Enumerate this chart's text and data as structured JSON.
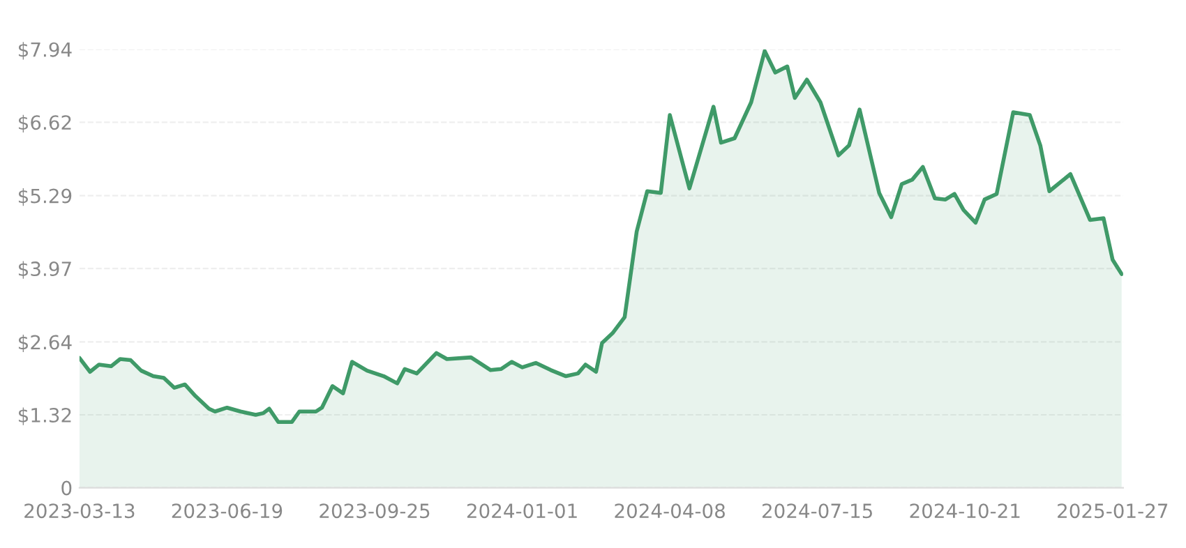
{
  "chart_data": {
    "type": "area",
    "x": [
      "2023-03-13",
      "2023-03-20",
      "2023-03-26",
      "2023-04-03",
      "2023-04-09",
      "2023-04-16",
      "2023-04-23",
      "2023-05-01",
      "2023-05-08",
      "2023-05-15",
      "2023-05-22",
      "2023-05-29",
      "2023-06-07",
      "2023-06-11",
      "2023-06-19",
      "2023-06-28",
      "2023-07-08",
      "2023-07-13",
      "2023-07-17",
      "2023-07-23",
      "2023-08-01",
      "2023-08-06",
      "2023-08-17",
      "2023-08-21",
      "2023-08-28",
      "2023-09-04",
      "2023-09-10",
      "2023-09-20",
      "2023-10-01",
      "2023-10-10",
      "2023-10-15",
      "2023-10-23",
      "2023-11-05",
      "2023-11-12",
      "2023-11-28",
      "2023-12-11",
      "2023-12-18",
      "2023-12-25",
      "2024-01-01",
      "2024-01-10",
      "2024-01-20",
      "2024-01-30",
      "2024-02-07",
      "2024-02-12",
      "2024-02-19",
      "2024-02-23",
      "2024-03-01",
      "2024-03-09",
      "2024-03-17",
      "2024-03-24",
      "2024-04-02",
      "2024-04-08",
      "2024-04-21",
      "2024-05-07",
      "2024-05-12",
      "2024-05-21",
      "2024-06-01",
      "2024-06-10",
      "2024-06-17",
      "2024-06-25",
      "2024-06-30",
      "2024-07-08",
      "2024-07-17",
      "2024-07-29",
      "2024-08-05",
      "2024-08-12",
      "2024-08-25",
      "2024-09-02",
      "2024-09-09",
      "2024-09-16",
      "2024-09-23",
      "2024-10-01",
      "2024-10-08",
      "2024-10-14",
      "2024-10-20",
      "2024-10-28",
      "2024-11-03",
      "2024-11-11",
      "2024-11-22",
      "2024-12-03",
      "2024-12-10",
      "2024-12-16",
      "2024-12-30",
      "2025-01-12",
      "2025-01-21",
      "2025-01-27",
      "2025-02-02"
    ],
    "series": [
      {
        "color": "#3f9a68",
        "values": [
          2.35,
          2.1,
          2.23,
          2.2,
          2.33,
          2.31,
          2.12,
          2.02,
          1.99,
          1.81,
          1.87,
          1.66,
          1.43,
          1.38,
          1.45,
          1.38,
          1.32,
          1.35,
          1.43,
          1.19,
          1.19,
          1.38,
          1.38,
          1.45,
          1.84,
          1.71,
          2.28,
          2.12,
          2.02,
          1.89,
          2.15,
          2.07,
          2.44,
          2.33,
          2.36,
          2.13,
          2.15,
          2.28,
          2.18,
          2.26,
          2.13,
          2.02,
          2.07,
          2.23,
          2.1,
          2.62,
          2.8,
          3.09,
          4.64,
          5.37,
          5.34,
          6.75,
          5.42,
          6.9,
          6.25,
          6.33,
          6.98,
          7.91,
          7.52,
          7.63,
          7.06,
          7.39,
          6.98,
          6.02,
          6.2,
          6.85,
          5.34,
          4.9,
          5.5,
          5.58,
          5.81,
          5.24,
          5.22,
          5.32,
          5.03,
          4.8,
          5.22,
          5.32,
          6.8,
          6.75,
          6.2,
          5.37,
          5.68,
          4.85,
          4.88,
          4.13,
          3.87
        ]
      }
    ],
    "xlim": [
      "2023-03-13",
      "2025-02-03"
    ],
    "xticks": [
      "2023-03-13",
      "2023-06-19",
      "2023-09-25",
      "2024-01-01",
      "2024-04-08",
      "2024-07-15",
      "2024-10-21",
      "2025-01-27"
    ],
    "ylim": [
      0,
      7.94
    ],
    "yticks": [
      {
        "value": 0,
        "label": "0"
      },
      {
        "value": 1.32,
        "label": "$1.32"
      },
      {
        "value": 2.64,
        "label": "$2.64"
      },
      {
        "value": 3.97,
        "label": "$3.97"
      },
      {
        "value": 5.29,
        "label": "$5.29"
      },
      {
        "value": 6.62,
        "label": "$6.62"
      },
      {
        "value": 7.94,
        "label": "$7.94"
      }
    ],
    "grid": "y"
  }
}
